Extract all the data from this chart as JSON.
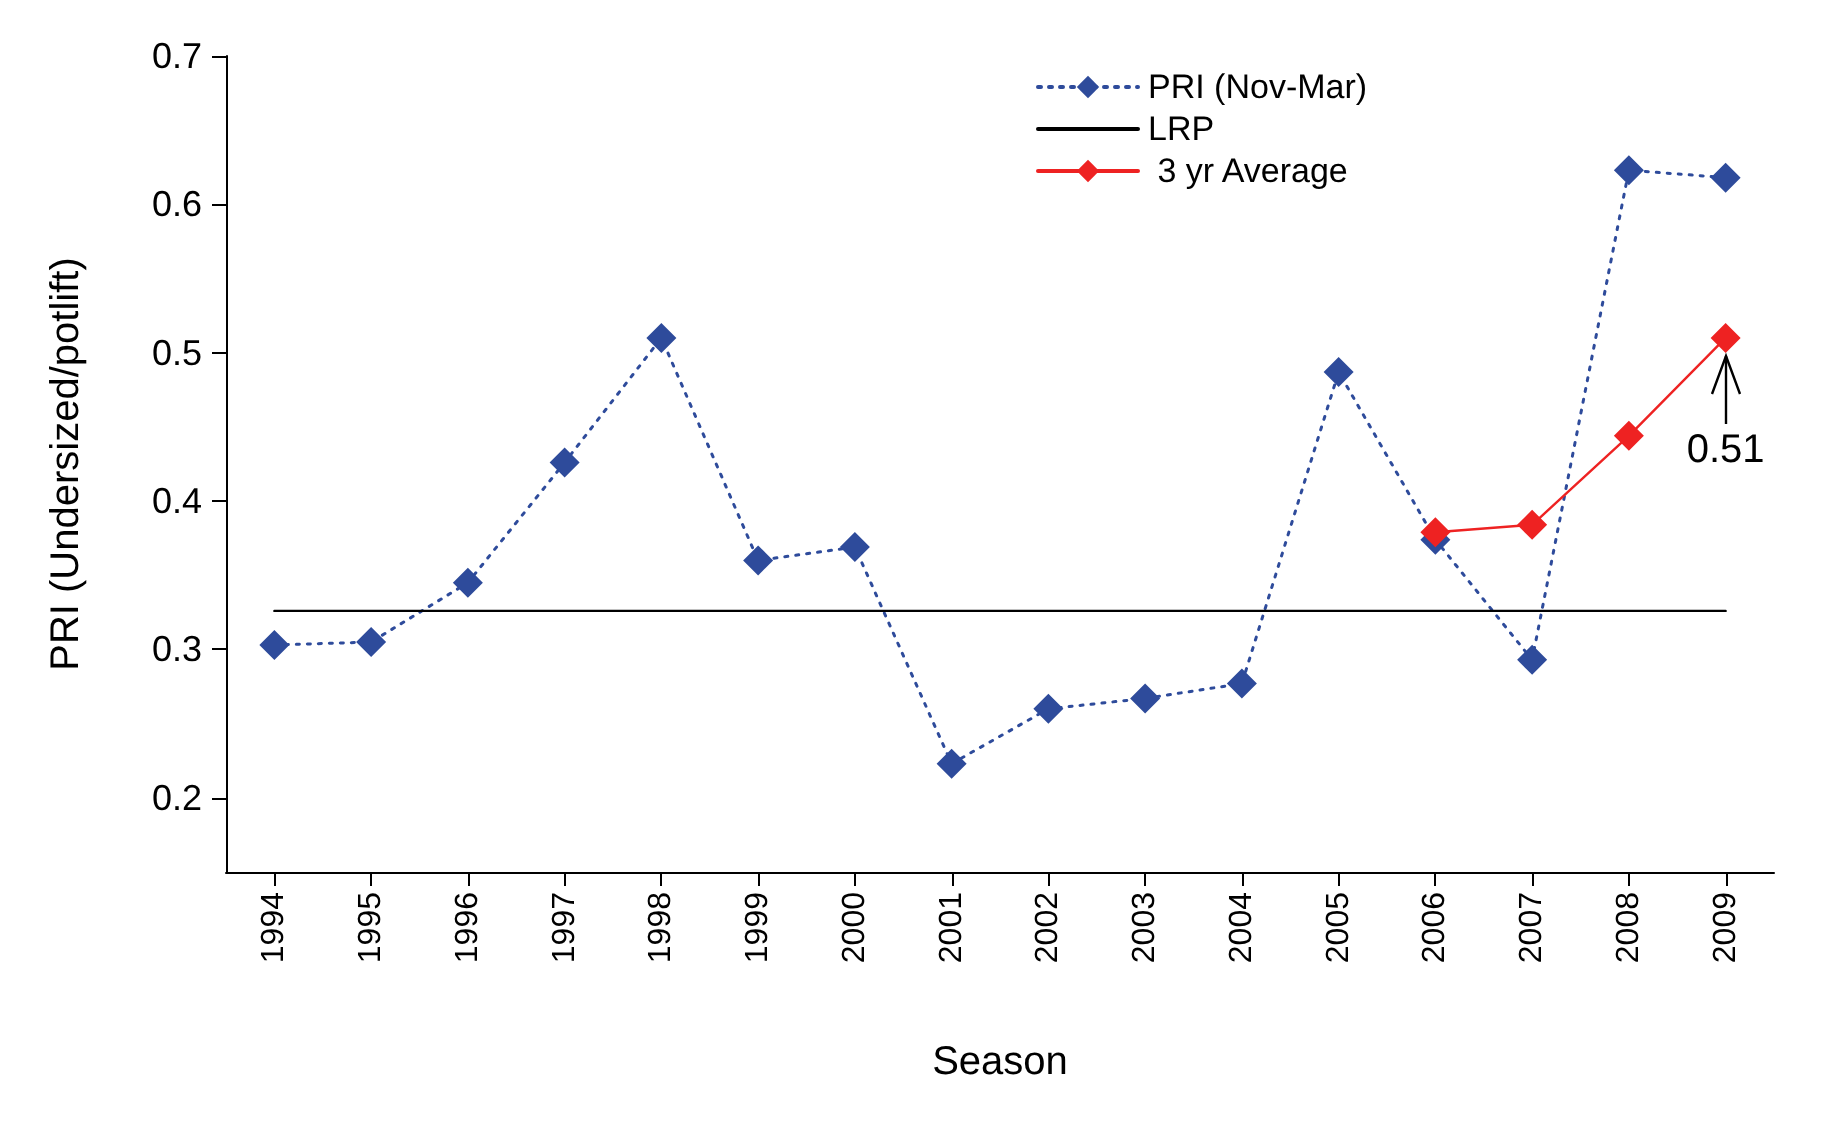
{
  "chart_data": {
    "type": "line",
    "xlabel": "Season",
    "ylabel": "PRI (Undersized/potlift)",
    "categories": [
      "1994",
      "1995",
      "1996",
      "1997",
      "1998",
      "1999",
      "2000",
      "2001",
      "2002",
      "2003",
      "2004",
      "2005",
      "2006",
      "2007",
      "2008",
      "2009"
    ],
    "series": [
      {
        "name": "PRI (Nov-Mar)",
        "color": "#2e4b9b",
        "line_style": "dotted",
        "marker": "diamond",
        "values": [
          0.303,
          0.305,
          0.345,
          0.426,
          0.51,
          0.36,
          0.369,
          0.223,
          0.26,
          0.267,
          0.277,
          0.487,
          0.374,
          0.293,
          0.623,
          0.618
        ]
      },
      {
        "name": "LRP",
        "color": "#000000",
        "line_style": "solid",
        "marker": "none",
        "values": [
          0.326,
          0.326,
          0.326,
          0.326,
          0.326,
          0.326,
          0.326,
          0.326,
          0.326,
          0.326,
          0.326,
          0.326,
          0.326,
          0.326,
          0.326,
          0.326
        ]
      },
      {
        "name": " 3 yr Average",
        "color": "#ee2222",
        "line_style": "solid",
        "marker": "diamond",
        "values": [
          null,
          null,
          null,
          null,
          null,
          null,
          null,
          null,
          null,
          null,
          null,
          null,
          0.379,
          0.384,
          0.444,
          0.51
        ]
      }
    ],
    "annotations": [
      {
        "text": "0.51",
        "x": "2009",
        "y": 0.51
      }
    ],
    "ylim": [
      0.15,
      0.7
    ],
    "yticks": [
      0.2,
      0.3,
      0.4,
      0.5,
      0.6,
      0.7
    ],
    "legend": "top",
    "grid": false
  }
}
